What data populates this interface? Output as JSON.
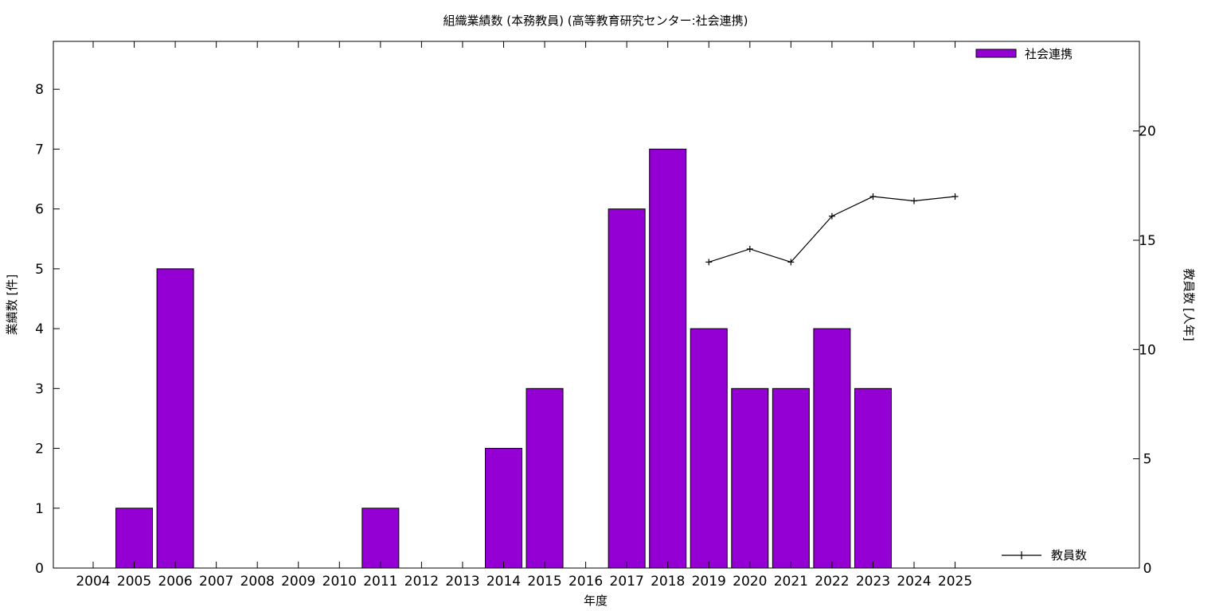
{
  "chart_data": {
    "type": "bar",
    "title": "組織業績数 (本務教員) (高等教育研究センター:社会連携)",
    "xlabel": "年度",
    "ylabel": "業績数 [件]",
    "y2label": "教員数 [人年]",
    "categories": [
      "2004",
      "2005",
      "2006",
      "2007",
      "2008",
      "2009",
      "2010",
      "2011",
      "2012",
      "2013",
      "2014",
      "2015",
      "2016",
      "2017",
      "2018",
      "2019",
      "2020",
      "2021",
      "2022",
      "2023",
      "2024",
      "2025"
    ],
    "ylim": [
      0,
      8.8
    ],
    "y2lim": [
      0,
      24.1
    ],
    "yticks": [
      0,
      1,
      2,
      3,
      4,
      5,
      6,
      7,
      8
    ],
    "y2ticks": [
      0,
      5,
      10,
      15,
      20
    ],
    "legend_placement": "top-right",
    "grid": false,
    "series": [
      {
        "name": "社会連携",
        "type": "bar",
        "axis": "left",
        "color": "#9400d3",
        "values": [
          0,
          1,
          5,
          0,
          0,
          0,
          0,
          1,
          0,
          0,
          2,
          3,
          0,
          6,
          7,
          4,
          3,
          3,
          4,
          3,
          0,
          0
        ]
      },
      {
        "name": "教員数",
        "type": "line",
        "axis": "right",
        "color": "#000000",
        "marker": "plus",
        "legend_placement": "bottom-right",
        "points": [
          {
            "x": "2019",
            "y": 14.0
          },
          {
            "x": "2020",
            "y": 14.6
          },
          {
            "x": "2021",
            "y": 14.0
          },
          {
            "x": "2022",
            "y": 16.1
          },
          {
            "x": "2023",
            "y": 17.0
          },
          {
            "x": "2024",
            "y": 16.8
          },
          {
            "x": "2025",
            "y": 17.0
          }
        ]
      }
    ]
  }
}
